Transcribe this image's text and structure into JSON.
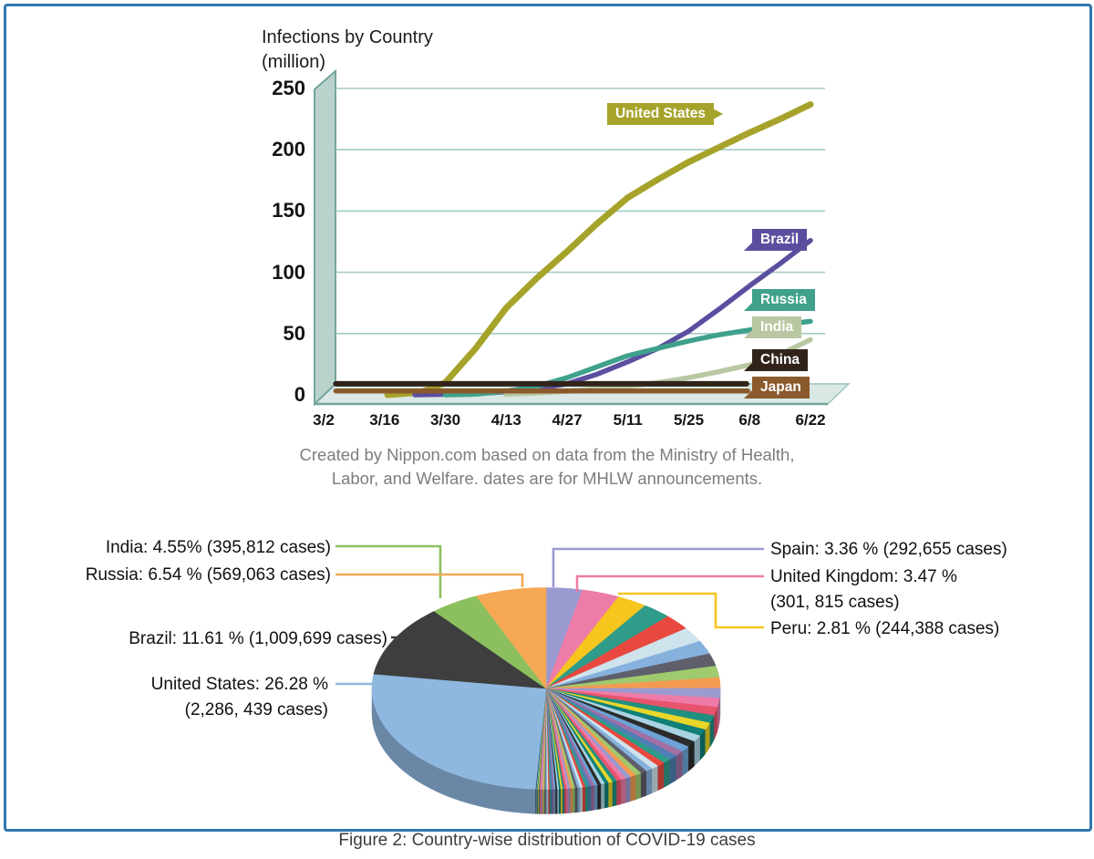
{
  "figure": {
    "caption": "Figure 2: Country-wise distribution of COVID-19 cases"
  },
  "colors": {
    "frame": "#3276ac",
    "grid": "#a3cbc4",
    "wall_fill": "#b9d2cc",
    "wall_edge": "#74a59c",
    "floor_fill": "#d9e8e5",
    "floor_edge": "#9cc4bd",
    "floor_front_edge": "#74a59c"
  },
  "chart_data": [
    {
      "type": "line",
      "title_lines": [
        "Infections by Country",
        "(million)"
      ],
      "ylabel": "million",
      "ylim": [
        0,
        250
      ],
      "y_ticks": [
        250,
        200,
        150,
        100,
        50,
        0
      ],
      "x_ticks": [
        "3/2",
        "3/16",
        "3/30",
        "4/13",
        "4/27",
        "5/11",
        "5/25",
        "6/8",
        "6/22"
      ],
      "grid": true,
      "source_lines": [
        "Created by Nippon.com based on data from the Ministry of Health,",
        "Labor, and Welfare. dates are for MHLW announcements."
      ],
      "series": [
        {
          "name": "United States",
          "color": "#a6a32b",
          "points": [
            [
              1.05,
              0
            ],
            [
              1.6,
              2
            ],
            [
              2,
              10
            ],
            [
              2.5,
              38
            ],
            [
              3,
              71
            ],
            [
              3.5,
              95
            ],
            [
              4,
              117
            ],
            [
              4.5,
              140
            ],
            [
              5,
              161
            ],
            [
              5.5,
              176
            ],
            [
              6,
              190
            ],
            [
              6.5,
              202
            ],
            [
              7,
              214
            ],
            [
              7.5,
              225
            ],
            [
              8,
              237
            ]
          ]
        },
        {
          "name": "Brazil",
          "color": "#5a4f9f",
          "points": [
            [
              1.5,
              0
            ],
            [
              2.5,
              1
            ],
            [
              3,
              2.5
            ],
            [
              3.5,
              5
            ],
            [
              4,
              9
            ],
            [
              4.5,
              17
            ],
            [
              5,
              27
            ],
            [
              5.5,
              38
            ],
            [
              6,
              52
            ],
            [
              6.5,
              70
            ],
            [
              7,
              89
            ],
            [
              7.5,
              107
            ],
            [
              8,
              126
            ]
          ]
        },
        {
          "name": "Russia",
          "color": "#3fa18b",
          "points": [
            [
              2,
              0
            ],
            [
              2.5,
              0.5
            ],
            [
              3,
              3
            ],
            [
              3.5,
              7
            ],
            [
              4,
              14
            ],
            [
              4.5,
              23
            ],
            [
              5,
              32
            ],
            [
              5.5,
              38
            ],
            [
              6,
              44
            ],
            [
              6.5,
              49
            ],
            [
              7,
              53
            ],
            [
              7.5,
              57
            ],
            [
              8,
              60
            ]
          ]
        },
        {
          "name": "India",
          "color": "#b9c7a2",
          "points": [
            [
              3,
              0.5
            ],
            [
              3.5,
              1.5
            ],
            [
              4,
              3
            ],
            [
              4.5,
              5
            ],
            [
              5,
              7
            ],
            [
              5.5,
              10
            ],
            [
              6,
              14
            ],
            [
              6.5,
              19
            ],
            [
              7,
              24.5
            ],
            [
              7.5,
              33
            ],
            [
              8,
              45
            ]
          ]
        },
        {
          "name": "China",
          "color": "#32231a",
          "points": [
            [
              0.2,
              9
            ],
            [
              6.95,
              9
            ]
          ]
        },
        {
          "name": "Japan",
          "color": "#8a5a2d",
          "points": [
            [
              0.2,
              3.2
            ],
            [
              6.97,
              3.2
            ]
          ]
        }
      ]
    },
    {
      "type": "pie",
      "title": "Country-wise distribution of COVID-19 cases",
      "order_clockwise_from_top": [
        "Spain",
        "United Kingdom",
        "Peru",
        "(other countries)",
        "United States",
        "Brazil",
        "India",
        "Russia"
      ],
      "slices": [
        {
          "name": "United States",
          "percent": 26.28,
          "cases": "2,286, 439",
          "color": "#8fb8e0",
          "label_lines": [
            "United States: 26.28 %",
            "(2,286, 439 cases)"
          ]
        },
        {
          "name": "Brazil",
          "percent": 11.61,
          "cases": "1,009,699",
          "color": "#3e3e3e",
          "label_lines": [
            "Brazil: 11.61 % (1,009,699 cases)"
          ]
        },
        {
          "name": "Russia",
          "percent": 6.54,
          "cases": "569,063",
          "color": "#f6a854",
          "label_lines": [
            "Russia: 6.54 % (569,063 cases)"
          ]
        },
        {
          "name": "India",
          "percent": 4.55,
          "cases": "395,812",
          "color": "#8cc05e",
          "label_lines": [
            "India: 4.55% (395,812 cases)"
          ]
        },
        {
          "name": "United Kingdom",
          "percent": 3.47,
          "cases": "301, 815",
          "color": "#ee7ca8",
          "label_lines": [
            "United Kingdom: 3.47 %",
            "(301, 815 cases)"
          ]
        },
        {
          "name": "Spain",
          "percent": 3.36,
          "cases": "292,655",
          "color": "#9b9ad0",
          "label_lines": [
            "Spain: 3.36 % (292,655 cases)"
          ]
        },
        {
          "name": "Peru",
          "percent": 2.81,
          "cases": "244,388",
          "color": "#f6c51e",
          "label_lines": [
            "Peru: 2.81 % (244,388 cases)"
          ]
        }
      ],
      "others": {
        "label": "other countries (unlabeled slivers)",
        "percent": 41.38,
        "palette": [
          "#2f9c8a",
          "#e8483f",
          "#cfe3ed",
          "#85b1dc",
          "#5f5f6b",
          "#9fca6e",
          "#f49b51",
          "#9b9ad0",
          "#ee7ca8",
          "#e8546d",
          "#1f8f80",
          "#e8d62a",
          "#0f7f77",
          "#a9d3e3",
          "#2b2b2b",
          "#6ba3d6",
          "#a06fa4",
          "#4f7fb5"
        ],
        "sizes": [
          2.6,
          2.45,
          2.3,
          2.1,
          1.95,
          1.8,
          1.65,
          1.5,
          1.4,
          1.3,
          1.2,
          1.1,
          1.05,
          1.0,
          0.95,
          0.9,
          0.85,
          0.8,
          0.75,
          0.7,
          0.66,
          0.62,
          0.58,
          0.55,
          0.52,
          0.49,
          0.46,
          0.43,
          0.4,
          0.38,
          0.36,
          0.34,
          0.32,
          0.3,
          0.28,
          0.27,
          0.26,
          0.25,
          0.24,
          0.23,
          0.22,
          0.21,
          0.2,
          0.19,
          0.18,
          0.17,
          0.165,
          0.16,
          0.155,
          0.15,
          0.145,
          0.14,
          0.135,
          0.13,
          0.125,
          0.12,
          0.115,
          0.11,
          0.105,
          0.1,
          0.095,
          0.09,
          0.085,
          0.08,
          0.075,
          0.07,
          0.065,
          0.06,
          0.055,
          0.05
        ]
      }
    }
  ]
}
